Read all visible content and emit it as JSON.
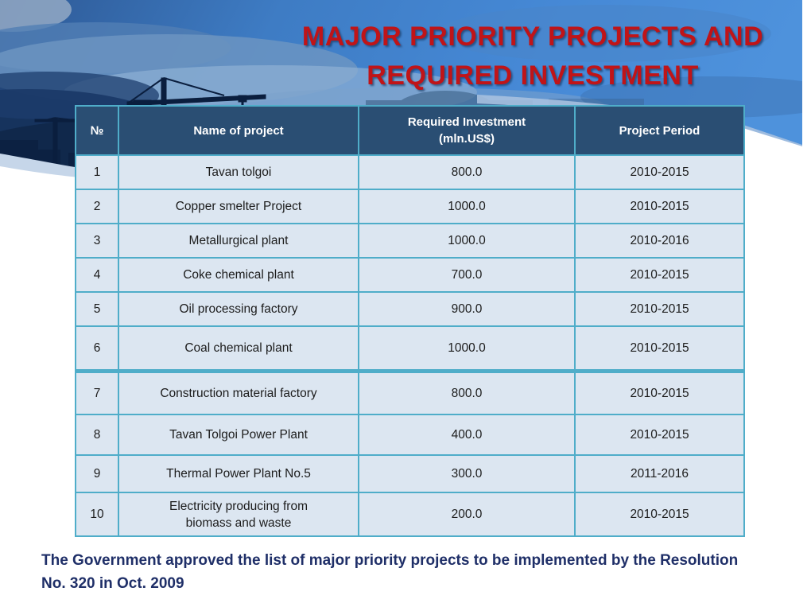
{
  "slide": {
    "title": "MAJOR PRIORITY PROJECTS AND\nREQUIRED INVESTMENT",
    "footer": "The Government approved the list of major priority projects to be implemented by the Resolution\nNo. 320 in Oct. 2009"
  },
  "table": {
    "columns": [
      "№",
      "Name of project",
      "Required Investment\n(mln.US$)",
      "Project Period"
    ],
    "rows": [
      [
        "1",
        "Tavan tolgoi",
        "800.0",
        "2010-2015"
      ],
      [
        "2",
        "Copper smelter Project",
        "1000.0",
        "2010-2015"
      ],
      [
        "3",
        "Metallurgical plant",
        "1000.0",
        "2010-2016"
      ],
      [
        "4",
        "Coke chemical plant",
        "700.0",
        "2010-2015"
      ],
      [
        "5",
        "Oil processing factory",
        "900.0",
        "2010-2015"
      ],
      [
        "6",
        "Coal chemical plant",
        "1000.0",
        "2010-2015"
      ],
      [
        "7",
        "Construction material factory",
        "800.0",
        "2010-2015"
      ],
      [
        "8",
        "Tavan Tolgoi Power Plant",
        "400.0",
        "2010-2015"
      ],
      [
        "9",
        "Thermal Power Plant No.5",
        "300.0",
        "2011-2016"
      ],
      [
        "10",
        "Electricity producing from\nbiomass and waste",
        "200.0",
        "2010-2015"
      ]
    ]
  },
  "colors": {
    "title_red": "#c01418",
    "header_bg": "#2a4e73",
    "cell_bg": "#dce6f1",
    "grid_border": "#4fadc9",
    "footer_navy": "#1f2f68",
    "sky_blue": "#4689d6",
    "dark_cloud": "#132c52",
    "swoosh_highlight": "#a6c0df"
  },
  "banner": {
    "description": "dusk sky photo with construction crane silhouettes"
  }
}
